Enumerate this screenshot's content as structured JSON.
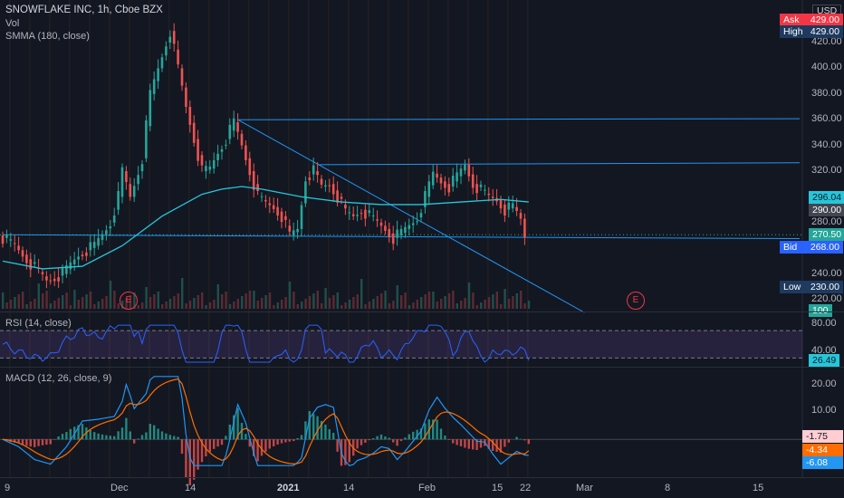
{
  "header": {
    "symbol": "SNOWFLAKE INC, 1h, Cboe BZX",
    "vol_label": "Vol",
    "smma_label": "SMMA (180, close)",
    "currency": "USD"
  },
  "quote_tags": {
    "ask": {
      "label": "Ask",
      "value": "429.00",
      "color": "#f23645"
    },
    "high": {
      "label": "High",
      "value": "429.00",
      "color": "#1e3a5f"
    },
    "bid": {
      "label": "Bid",
      "value": "268.00",
      "color": "#2962ff"
    },
    "low": {
      "label": "Low",
      "value": "230.00",
      "color": "#1e3a5f"
    }
  },
  "price_tags": {
    "smma": {
      "value": "296.04",
      "color": "#26c6da"
    },
    "close_prev": {
      "value": "290.00",
      "color": "#434651"
    },
    "last": {
      "value": "270.50",
      "color": "#26a69a"
    },
    "vol": {
      "value": "100",
      "color": "#26a69a"
    }
  },
  "price_axis": [
    "420.00",
    "400.00",
    "380.00",
    "360.00",
    "340.00",
    "320.00",
    "300.00",
    "280.00",
    "240.00",
    "220.00"
  ],
  "rsi": {
    "label": "RSI (14, close)",
    "ticks": [
      "80.00",
      "40.00"
    ],
    "value": "26.49"
  },
  "macd": {
    "label": "MACD (12, 26, close, 9)",
    "ticks": [
      "20.00",
      "10.00"
    ],
    "values": [
      {
        "v": "-1.75",
        "color": "#ffcdd2",
        "text": "#131722"
      },
      {
        "v": "-4.34",
        "color": "#ff6d00",
        "text": "#fff"
      },
      {
        "v": "-6.08",
        "color": "#2196f3",
        "text": "#fff"
      }
    ]
  },
  "time_axis": [
    "9",
    "Dec",
    "14",
    "2021",
    "14",
    "Feb",
    "15",
    "22",
    "Mar",
    "8",
    "15"
  ],
  "earnings_marker": "E",
  "chart_data": {
    "type": "candlestick",
    "title": "SNOWFLAKE INC, 1h, Cboe BZX",
    "ylim": [
      210,
      432
    ],
    "x_labels": [
      "9",
      "Dec",
      "14",
      "2021",
      "14",
      "Feb",
      "15",
      "22",
      "Mar",
      "8",
      "15"
    ],
    "price_path": [
      [
        0,
        270
      ],
      [
        4,
        262
      ],
      [
        8,
        248
      ],
      [
        12,
        235
      ],
      [
        16,
        240
      ],
      [
        20,
        255
      ],
      [
        24,
        262
      ],
      [
        28,
        280
      ],
      [
        30,
        300
      ],
      [
        31,
        320
      ],
      [
        33,
        300
      ],
      [
        36,
        330
      ],
      [
        38,
        380
      ],
      [
        40,
        400
      ],
      [
        42,
        420
      ],
      [
        43,
        429
      ],
      [
        45,
        400
      ],
      [
        47,
        370
      ],
      [
        49,
        345
      ],
      [
        51,
        320
      ],
      [
        53,
        322
      ],
      [
        55,
        335
      ],
      [
        57,
        345
      ],
      [
        59,
        358
      ],
      [
        61,
        340
      ],
      [
        63,
        320
      ],
      [
        65,
        300
      ],
      [
        67,
        295
      ],
      [
        69,
        292
      ],
      [
        71,
        285
      ],
      [
        73,
        270
      ],
      [
        75,
        275
      ],
      [
        77,
        315
      ],
      [
        79,
        320
      ],
      [
        81,
        308
      ],
      [
        83,
        310
      ],
      [
        85,
        300
      ],
      [
        87,
        288
      ],
      [
        89,
        285
      ],
      [
        91,
        290
      ],
      [
        93,
        285
      ],
      [
        95,
        280
      ],
      [
        97,
        275
      ],
      [
        99,
        268
      ],
      [
        101,
        272
      ],
      [
        103,
        278
      ],
      [
        105,
        284
      ],
      [
        107,
        300
      ],
      [
        109,
        318
      ],
      [
        111,
        312
      ],
      [
        113,
        308
      ],
      [
        115,
        316
      ],
      [
        117,
        325
      ],
      [
        119,
        310
      ],
      [
        121,
        305
      ],
      [
        123,
        300
      ],
      [
        125,
        298
      ],
      [
        127,
        290
      ],
      [
        129,
        292
      ],
      [
        131,
        283
      ],
      [
        132,
        270
      ]
    ],
    "smma_path": [
      [
        0,
        250
      ],
      [
        10,
        244
      ],
      [
        20,
        246
      ],
      [
        30,
        262
      ],
      [
        40,
        285
      ],
      [
        50,
        302
      ],
      [
        55,
        306
      ],
      [
        60,
        308
      ],
      [
        65,
        306
      ],
      [
        75,
        300
      ],
      [
        85,
        296
      ],
      [
        95,
        294
      ],
      [
        105,
        294
      ],
      [
        115,
        296
      ],
      [
        125,
        298
      ],
      [
        132,
        296
      ]
    ],
    "trendlines": [
      {
        "from": [
          59,
          360
        ],
        "to": [
          200,
          360.8
        ]
      },
      {
        "from": [
          79,
          325
        ],
        "to": [
          200,
          326.5
        ]
      },
      {
        "from": [
          0,
          270.5
        ],
        "to": [
          200,
          267.5
        ]
      },
      {
        "from": [
          59,
          360
        ],
        "to": [
          146,
          210
        ]
      }
    ],
    "rsi": {
      "ylim": [
        20,
        90
      ],
      "upper": 70,
      "lower": 30,
      "last": 26.49
    },
    "macd": {
      "ylim": [
        -12,
        26
      ],
      "last_hist": -1.75,
      "last_signal": -4.34,
      "last_macd": -6.08
    }
  }
}
